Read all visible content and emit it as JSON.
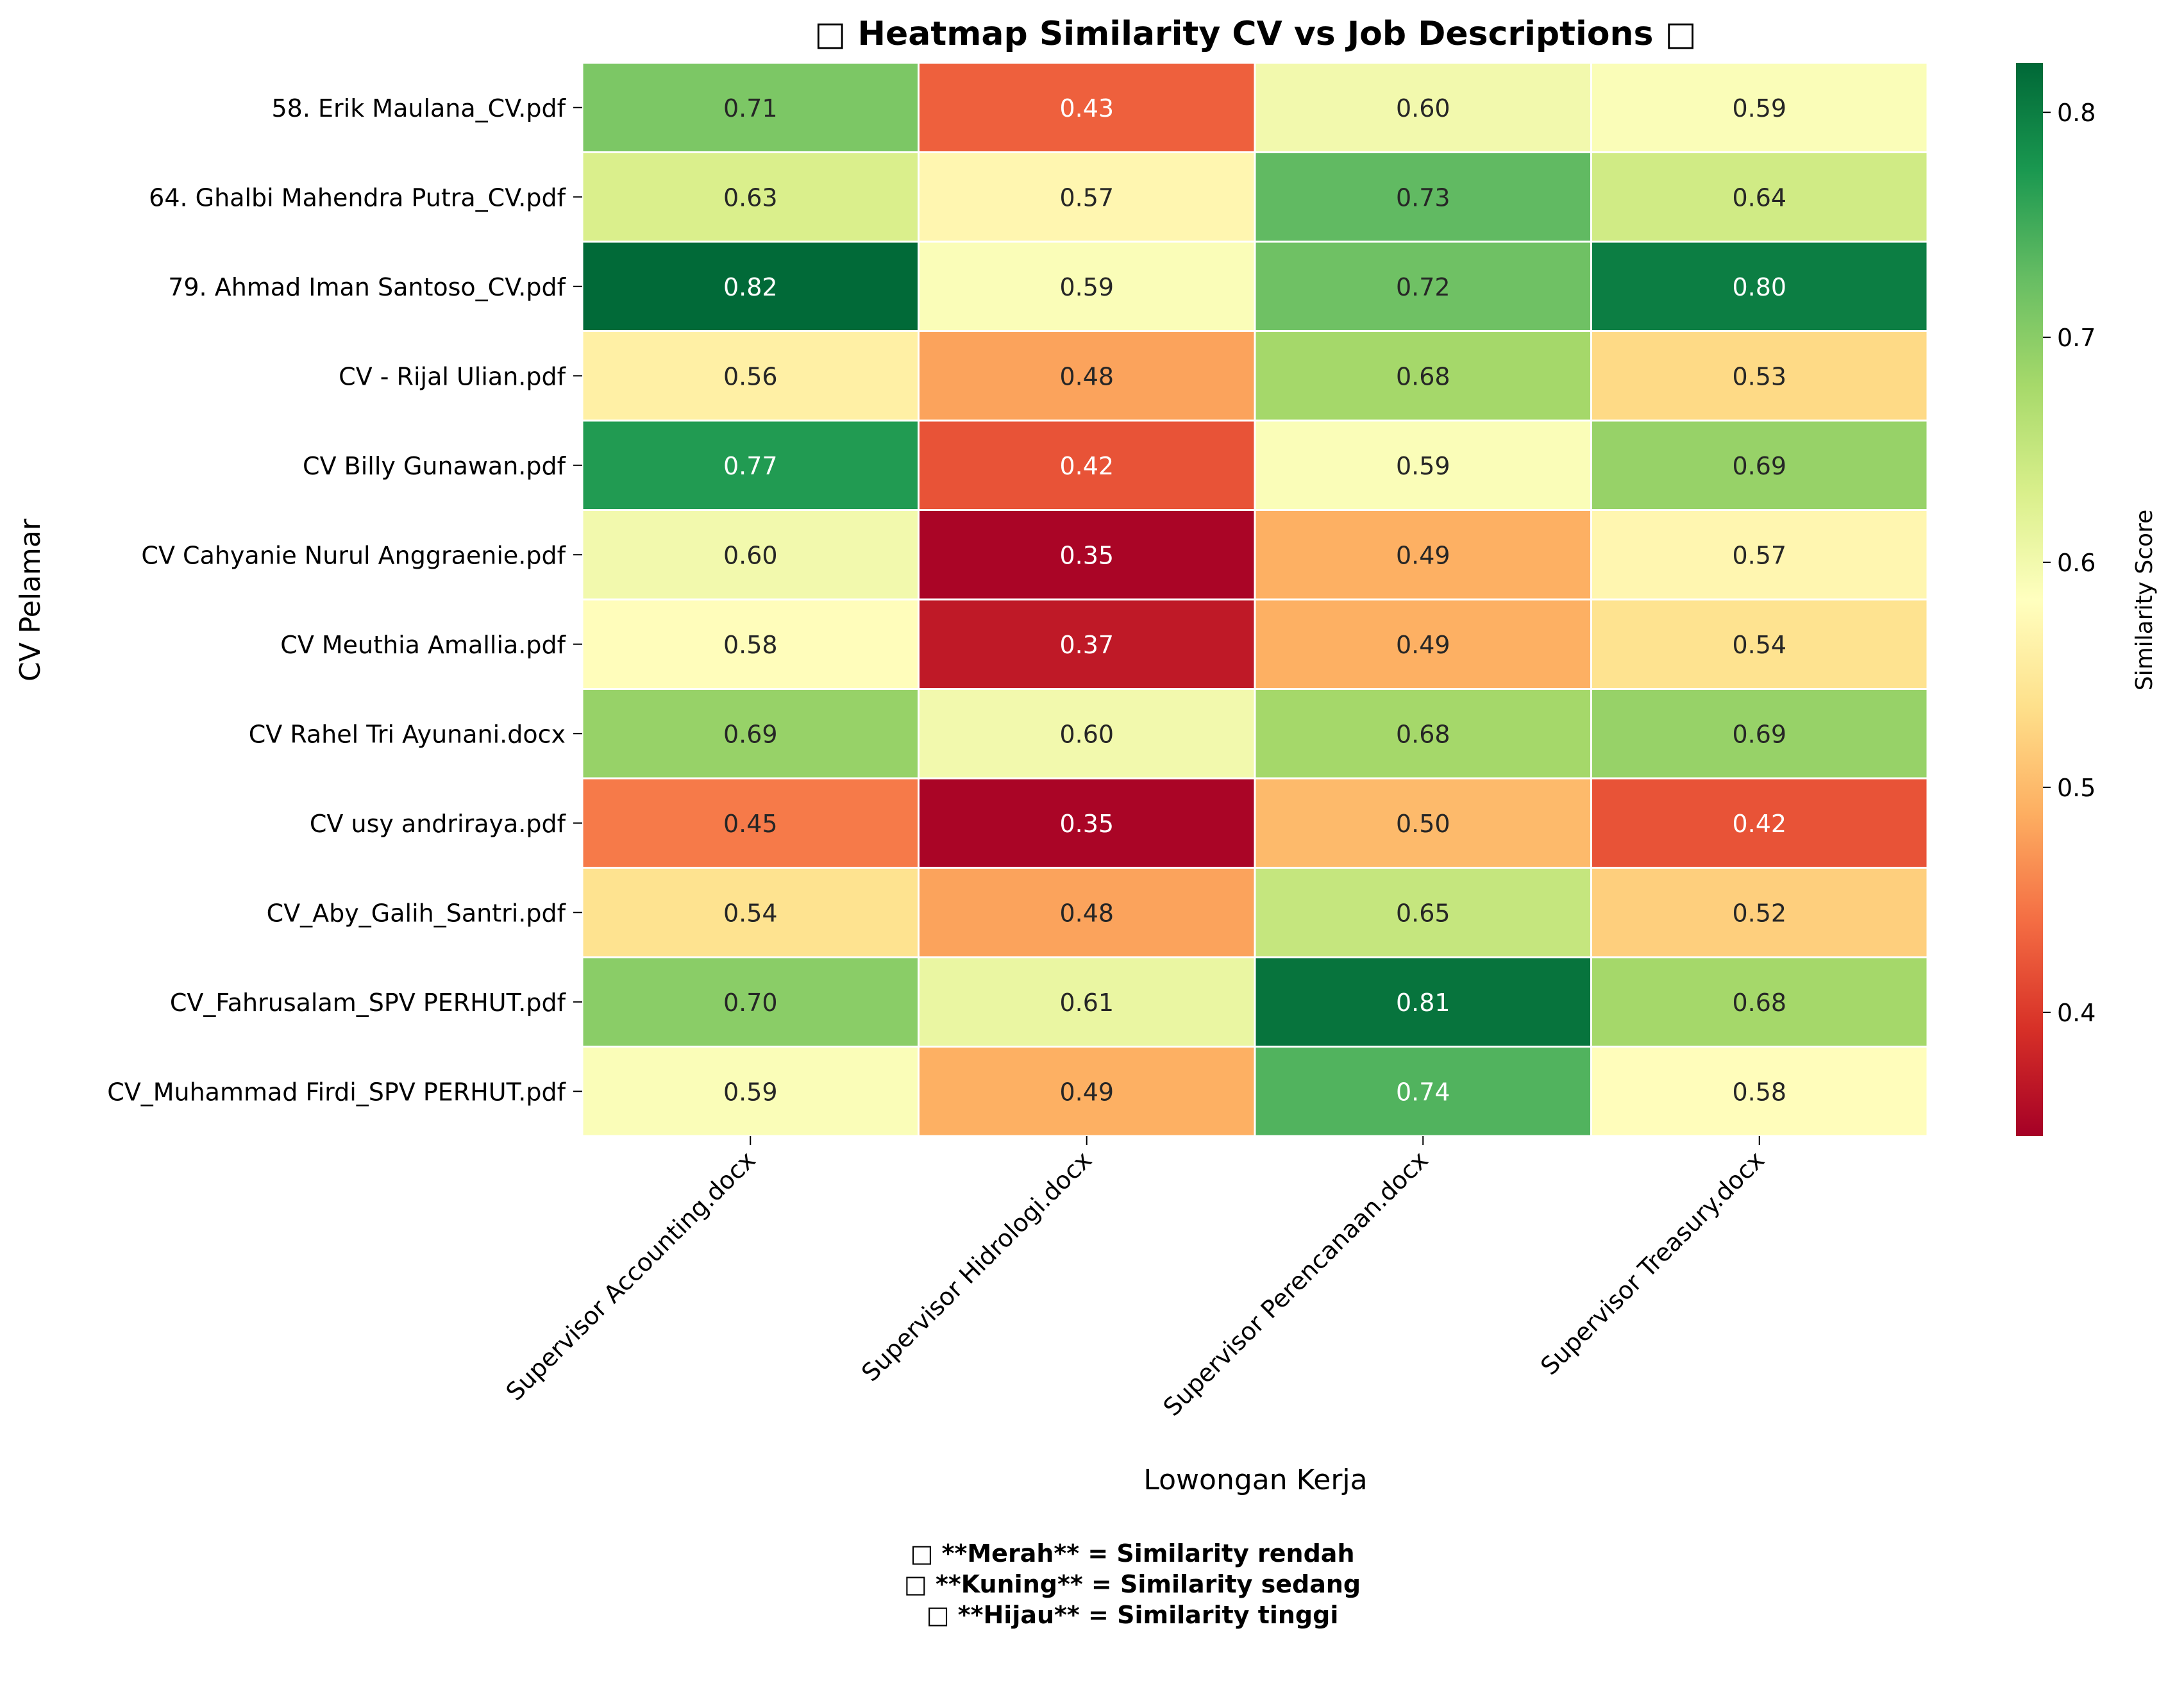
{
  "chart_data": {
    "type": "heatmap",
    "title": "□ Heatmap Similarity CV vs Job Descriptions □",
    "xlabel": "Lowongan Kerja",
    "ylabel": "CV Pelamar",
    "colorbar_label": "Similarity Score",
    "colorbar_ticks": [
      "0.4",
      "0.5",
      "0.6",
      "0.7",
      "0.8"
    ],
    "colorbar_tick_values": [
      0.4,
      0.5,
      0.6,
      0.7,
      0.8
    ],
    "vmin": 0.345,
    "vmax": 0.822,
    "colormap": "RdYlGn",
    "x_categories": [
      "Supervisor Accounting.docx",
      "Supervisor Hidrologi.docx",
      "Supervisor Perencanaan.docx",
      "Supervisor Treasury.docx"
    ],
    "y_categories": [
      "58. Erik Maulana_CV.pdf",
      "64. Ghalbi Mahendra Putra_CV.pdf",
      "79. Ahmad Iman Santoso_CV.pdf",
      "CV - Rijal Ulian.pdf",
      "CV Billy Gunawan.pdf",
      "CV Cahyanie Nurul Anggraenie.pdf",
      "CV Meuthia Amallia.pdf",
      "CV Rahel Tri Ayunani.docx",
      "CV usy andriraya.pdf",
      "CV_Aby_Galih_Santri.pdf",
      "CV_Fahrusalam_SPV PERHUT.pdf",
      "CV_Muhammad Firdi_SPV PERHUT.pdf"
    ],
    "values": [
      [
        0.71,
        0.43,
        0.6,
        0.59
      ],
      [
        0.63,
        0.57,
        0.73,
        0.64
      ],
      [
        0.82,
        0.59,
        0.72,
        0.8
      ],
      [
        0.56,
        0.48,
        0.68,
        0.53
      ],
      [
        0.77,
        0.42,
        0.59,
        0.69
      ],
      [
        0.6,
        0.35,
        0.49,
        0.57
      ],
      [
        0.58,
        0.37,
        0.49,
        0.54
      ],
      [
        0.69,
        0.6,
        0.68,
        0.69
      ],
      [
        0.45,
        0.35,
        0.5,
        0.42
      ],
      [
        0.54,
        0.48,
        0.65,
        0.52
      ],
      [
        0.7,
        0.61,
        0.81,
        0.68
      ],
      [
        0.59,
        0.49,
        0.74,
        0.58
      ]
    ],
    "value_labels": [
      [
        "0.71",
        "0.43",
        "0.60",
        "0.59"
      ],
      [
        "0.63",
        "0.57",
        "0.73",
        "0.64"
      ],
      [
        "0.82",
        "0.59",
        "0.72",
        "0.80"
      ],
      [
        "0.56",
        "0.48",
        "0.68",
        "0.53"
      ],
      [
        "0.77",
        "0.42",
        "0.59",
        "0.69"
      ],
      [
        "0.60",
        "0.35",
        "0.49",
        "0.57"
      ],
      [
        "0.58",
        "0.37",
        "0.49",
        "0.54"
      ],
      [
        "0.69",
        "0.60",
        "0.68",
        "0.69"
      ],
      [
        "0.45",
        "0.35",
        "0.50",
        "0.42"
      ],
      [
        "0.54",
        "0.48",
        "0.65",
        "0.52"
      ],
      [
        "0.70",
        "0.61",
        "0.81",
        "0.68"
      ],
      [
        "0.59",
        "0.49",
        "0.74",
        "0.58"
      ]
    ],
    "footnote": [
      "□ **Merah**  = Similarity rendah",
      "□ **Kuning** = Similarity sedang",
      "□ **Hijau**  = Similarity tinggi"
    ]
  }
}
